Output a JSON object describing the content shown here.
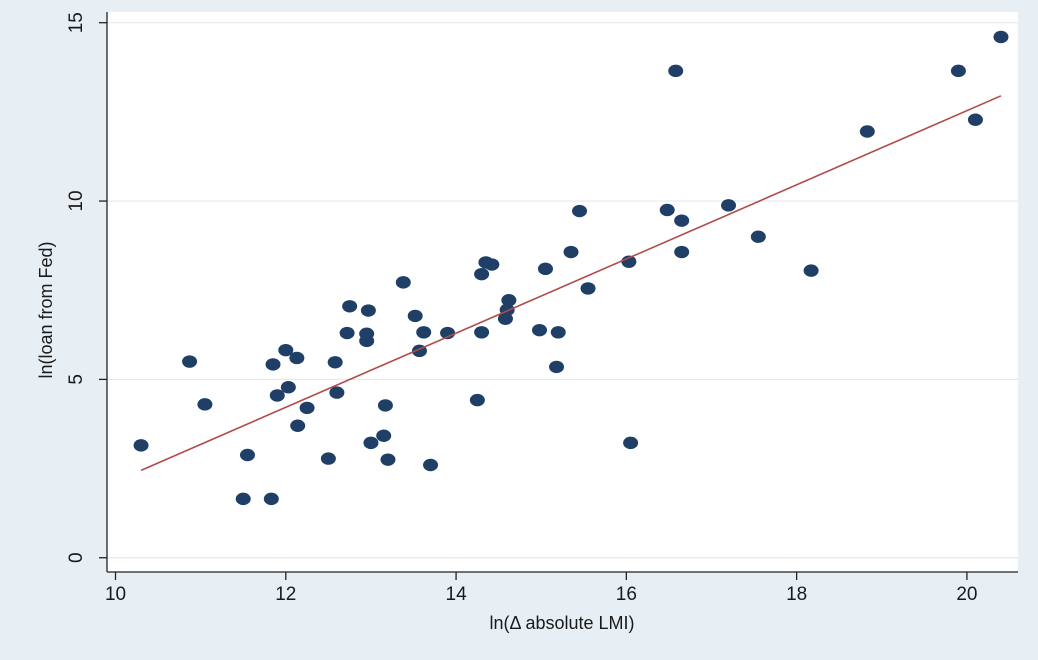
{
  "chart_data": {
    "type": "scatter",
    "title": "",
    "xlabel": "ln(Δ absolute LMI)",
    "ylabel": "ln(loan from Fed)",
    "xlim": [
      9.9,
      20.6
    ],
    "ylim": [
      -0.4,
      15.3
    ],
    "xticks": [
      10,
      12,
      14,
      16,
      18,
      20
    ],
    "yticks": [
      0,
      5,
      10,
      15
    ],
    "grid": true,
    "legend": "none",
    "colors": {
      "point": "#1f3f66",
      "fit_line": "#b24a4a",
      "plot_background": "#ffffff",
      "outer_background": "#e8eff4",
      "gridline": "#e3e9ee"
    },
    "fit_line": {
      "x": [
        10.3,
        20.4
      ],
      "y": [
        2.45,
        12.95
      ]
    },
    "series": [
      {
        "points": [
          [
            10.3,
            3.15
          ],
          [
            10.87,
            5.5
          ],
          [
            11.05,
            4.3
          ],
          [
            11.5,
            1.65
          ],
          [
            11.55,
            2.88
          ],
          [
            11.83,
            1.65
          ],
          [
            11.85,
            5.42
          ],
          [
            11.9,
            4.55
          ],
          [
            12.0,
            5.82
          ],
          [
            12.03,
            4.78
          ],
          [
            12.13,
            5.6
          ],
          [
            12.14,
            3.7
          ],
          [
            12.25,
            4.2
          ],
          [
            12.5,
            2.78
          ],
          [
            12.58,
            5.48
          ],
          [
            12.6,
            4.63
          ],
          [
            12.72,
            6.3
          ],
          [
            12.75,
            7.05
          ],
          [
            12.95,
            6.08
          ],
          [
            12.95,
            6.28
          ],
          [
            12.97,
            6.93
          ],
          [
            13.0,
            3.22
          ],
          [
            13.15,
            3.42
          ],
          [
            13.17,
            4.27
          ],
          [
            13.2,
            2.75
          ],
          [
            13.38,
            7.72
          ],
          [
            13.52,
            6.78
          ],
          [
            13.57,
            5.8
          ],
          [
            13.62,
            6.32
          ],
          [
            13.7,
            2.6
          ],
          [
            13.9,
            6.3
          ],
          [
            14.25,
            4.42
          ],
          [
            14.3,
            6.32
          ],
          [
            14.3,
            7.95
          ],
          [
            14.35,
            8.28
          ],
          [
            14.42,
            8.22
          ],
          [
            14.58,
            6.7
          ],
          [
            14.6,
            6.95
          ],
          [
            14.62,
            7.22
          ],
          [
            14.98,
            6.38
          ],
          [
            15.05,
            8.1
          ],
          [
            15.18,
            5.35
          ],
          [
            15.2,
            6.32
          ],
          [
            15.35,
            8.57
          ],
          [
            15.45,
            9.72
          ],
          [
            15.55,
            7.55
          ],
          [
            16.03,
            8.3
          ],
          [
            16.05,
            3.22
          ],
          [
            16.48,
            9.75
          ],
          [
            16.58,
            13.65
          ],
          [
            16.65,
            9.45
          ],
          [
            16.65,
            8.57
          ],
          [
            17.2,
            9.88
          ],
          [
            17.55,
            9.0
          ],
          [
            18.17,
            8.05
          ],
          [
            18.83,
            11.95
          ],
          [
            19.9,
            13.65
          ],
          [
            20.1,
            12.28
          ],
          [
            20.4,
            14.6
          ]
        ]
      }
    ]
  }
}
